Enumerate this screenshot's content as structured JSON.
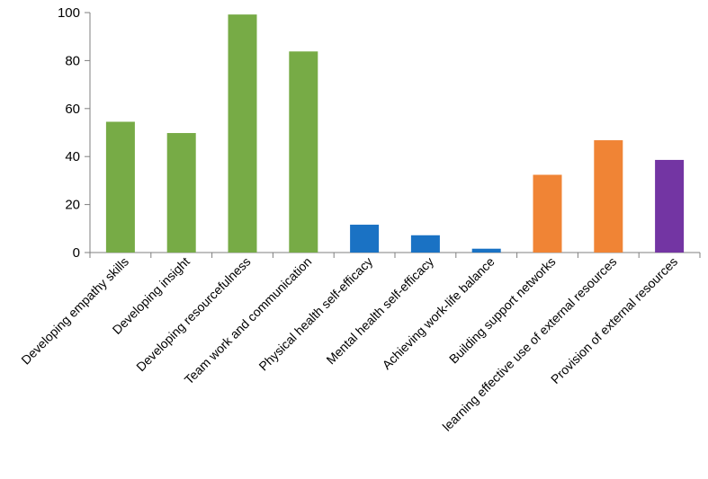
{
  "chart_data": {
    "type": "bar",
    "title": "",
    "xlabel": "",
    "ylabel": "",
    "ylim": [
      0,
      100
    ],
    "yticks": [
      0,
      20,
      40,
      60,
      80,
      100
    ],
    "grid": false,
    "categories": [
      "Developing empathy skills",
      "Developing insight",
      "Developing resourcefulness",
      "Team work and communication",
      "Physical health self-efficacy",
      "Mental health self-efficacy",
      "Achieving work-life balance",
      "Building support networks",
      "learning effective use of external resources",
      "Provision of external resources"
    ],
    "values": [
      54.5,
      49.8,
      99.2,
      83.8,
      11.6,
      7.2,
      1.6,
      32.4,
      46.8,
      38.6
    ],
    "colors": [
      "#77ab46",
      "#77ab46",
      "#77ab46",
      "#77ab46",
      "#1a72c4",
      "#1a72c4",
      "#1a72c4",
      "#f08435",
      "#f08435",
      "#7335a3"
    ]
  }
}
